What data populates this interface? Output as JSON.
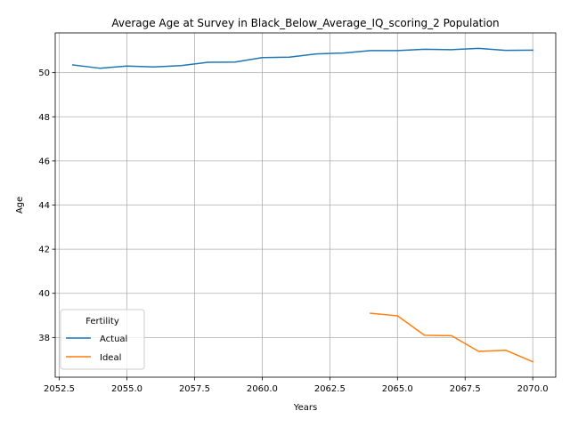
{
  "chart_data": {
    "type": "line",
    "title": "Average Age at Survey in Black_Below_Average_IQ_scoring_2 Population",
    "xlabel": "Years",
    "ylabel": "Age",
    "xlim": [
      2052.35,
      2070.85
    ],
    "ylim": [
      36.2,
      51.8
    ],
    "x_ticks": [
      2052.5,
      2055.0,
      2057.5,
      2060.0,
      2062.5,
      2065.0,
      2067.5,
      2070.0
    ],
    "x_tick_labels": [
      "2052.5",
      "2055.0",
      "2057.5",
      "2060.0",
      "2062.5",
      "2065.0",
      "2067.5",
      "2070.0"
    ],
    "y_ticks": [
      38,
      40,
      42,
      44,
      46,
      48,
      50
    ],
    "y_tick_labels": [
      "38",
      "40",
      "42",
      "44",
      "46",
      "48",
      "50"
    ],
    "grid": true,
    "legend": {
      "title": "Fertility",
      "placement": "lower-left"
    },
    "series": [
      {
        "name": "Actual",
        "color": "#1f77b4",
        "x": [
          2053,
          2054,
          2055,
          2056,
          2057,
          2058,
          2059,
          2060,
          2061,
          2062,
          2063,
          2064,
          2065,
          2066,
          2067,
          2068,
          2069,
          2070
        ],
        "y": [
          50.35,
          50.2,
          50.3,
          50.26,
          50.32,
          50.47,
          50.48,
          50.68,
          50.7,
          50.85,
          50.89,
          51.0,
          51.0,
          51.06,
          51.04,
          51.1,
          51.01,
          51.02
        ]
      },
      {
        "name": "Ideal",
        "color": "#ff7f0e",
        "x": [
          2064,
          2065,
          2066,
          2067,
          2068,
          2069,
          2070
        ],
        "y": [
          39.1,
          38.98,
          38.1,
          38.08,
          37.37,
          37.42,
          36.9
        ]
      }
    ]
  }
}
